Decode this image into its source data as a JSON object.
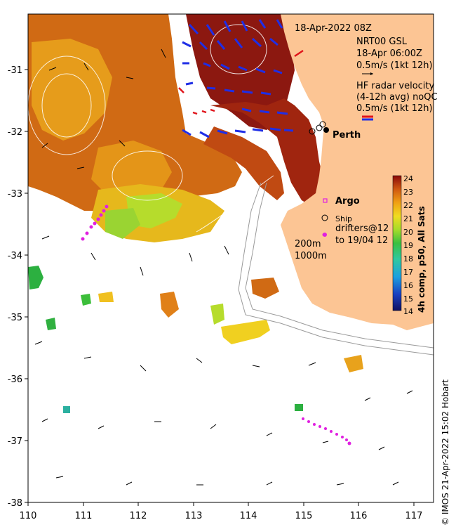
{
  "map": {
    "timestamp": "18-Apr-2022 08Z",
    "altimetry": {
      "line1": "NRT00 GSL",
      "line2": "18-Apr 06:00Z",
      "line3": "0.5m/s (1kt 12h)"
    },
    "radar": {
      "line1": "HF radar velocity",
      "line2": "(4-12h avg) noQC",
      "line3": "0.5m/s (1kt 12h)"
    },
    "city": "Perth",
    "argo": "Argo",
    "ship": "Ship",
    "drifters": {
      "line1": "drifters@12",
      "line2": "to 19/04 12"
    },
    "isobaths": [
      "200m",
      "1000m"
    ],
    "colorbar": {
      "title": "4h comp, p50, All Sats",
      "ticks": [
        "24",
        "23",
        "22",
        "21",
        "20",
        "19",
        "18",
        "17",
        "16",
        "15",
        "14"
      ]
    },
    "x_ticks": [
      "110",
      "111",
      "112",
      "113",
      "114",
      "115",
      "116",
      "117"
    ],
    "y_ticks": [
      "-31",
      "-32",
      "-33",
      "-34",
      "-35",
      "-36",
      "-37",
      "-38"
    ],
    "credit": "© IMOS 21-Apr-2022 15:02 Hobart",
    "colors": {
      "land": "#fcc594",
      "altimetry_arrow": "#000000",
      "radar_arrow": "#1f2ee6",
      "radar_highlight": "#e0141b",
      "drifter": "#e020e0"
    }
  }
}
